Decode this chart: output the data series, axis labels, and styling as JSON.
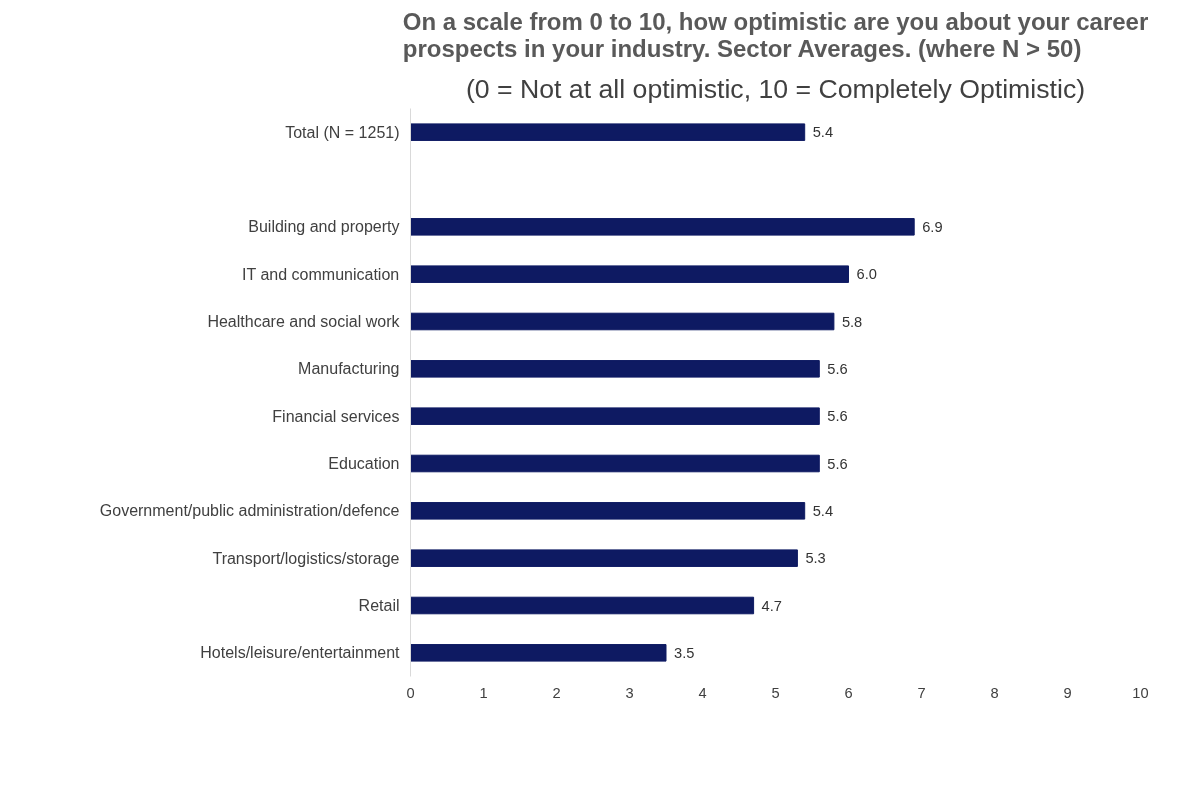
{
  "chart_data": {
    "type": "bar",
    "orientation": "horizontal",
    "title": "On a scale from 0 to 10, how optimistic are you about your career prospects in your industry. Sector Averages. (where N > 50)",
    "subtitle": "(0 = Not at all optimistic, 10 = Completely Optimistic)",
    "categories": [
      "Total (N = 1251)",
      null,
      "Building and property",
      "IT and communication",
      "Healthcare and social work",
      "Manufacturing",
      "Financial services",
      "Education",
      "Government/public administration/defence",
      "Transport/logistics/storage",
      "Retail",
      "Hotels/leisure/entertainment"
    ],
    "values": [
      5.4,
      null,
      6.9,
      6.0,
      5.8,
      5.6,
      5.6,
      5.6,
      5.4,
      5.3,
      4.7,
      3.5
    ],
    "value_labels": [
      "5.4",
      null,
      "6.9",
      "6.0",
      "5.8",
      "5.6",
      "5.6",
      "5.6",
      "5.4",
      "5.3",
      "4.7",
      "3.5"
    ],
    "color": "#0e1a62",
    "xlim": [
      0,
      10
    ],
    "xticks": [
      0,
      1,
      2,
      3,
      4,
      5,
      6,
      7,
      8,
      9,
      10
    ],
    "grid": false
  }
}
